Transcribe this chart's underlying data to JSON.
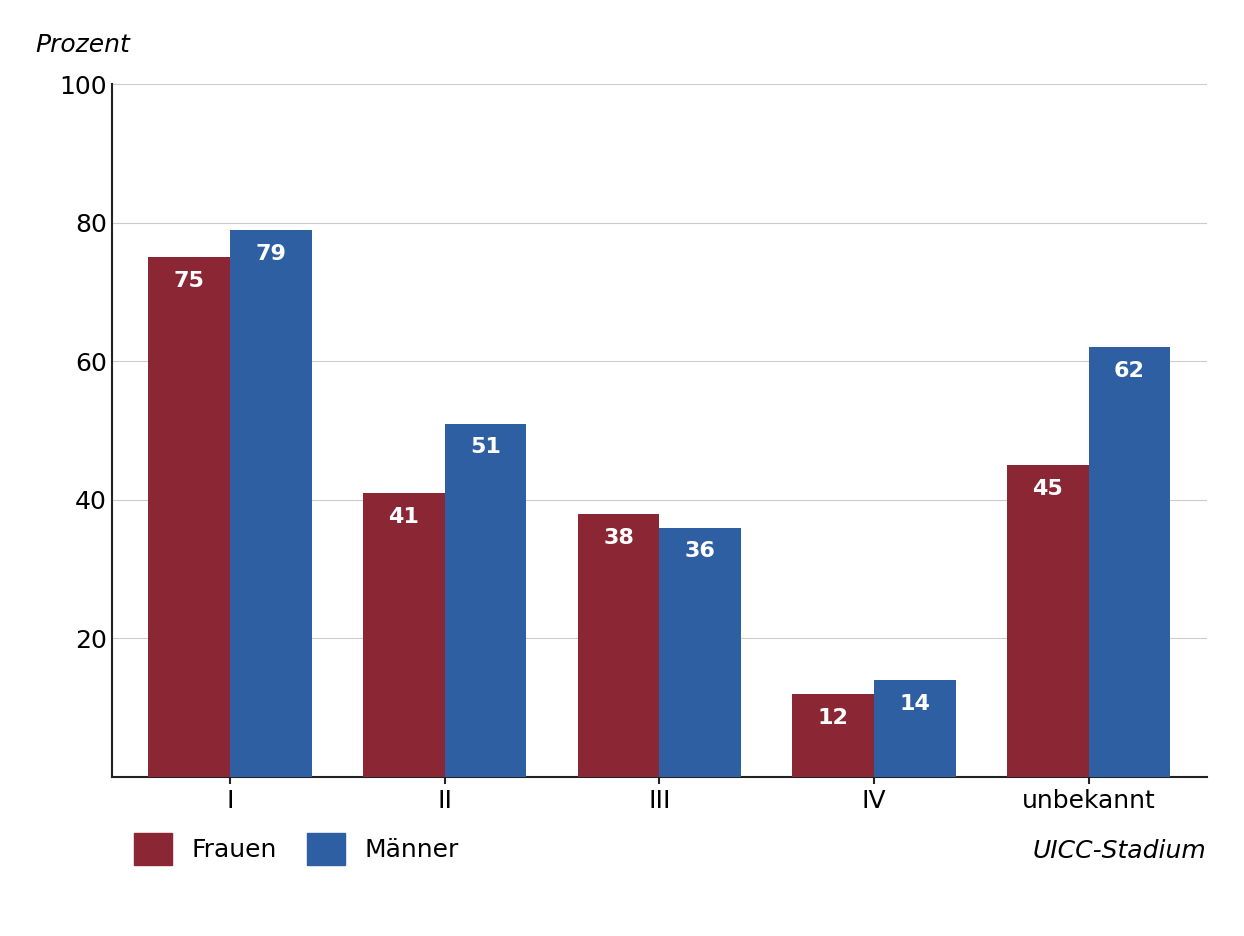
{
  "categories": [
    "I",
    "II",
    "III",
    "IV",
    "unbekannt"
  ],
  "frauen": [
    75,
    41,
    38,
    12,
    45
  ],
  "maenner": [
    79,
    51,
    36,
    14,
    62
  ],
  "frauen_color": "#8B2635",
  "maenner_color": "#2E5FA3",
  "ylabel": "Prozent",
  "xlabel": "UICC-Stadium",
  "ylim": [
    0,
    100
  ],
  "yticks": [
    20,
    40,
    60,
    80,
    100
  ],
  "bar_width": 0.38,
  "tick_fontsize": 18,
  "ylabel_fontsize": 18,
  "xlabel_fontsize": 18,
  "legend_fontsize": 18,
  "value_fontsize": 16,
  "background_color": "#ffffff",
  "grid_color": "#cccccc",
  "frauen_label": "Frauen",
  "maenner_label": "Männer"
}
